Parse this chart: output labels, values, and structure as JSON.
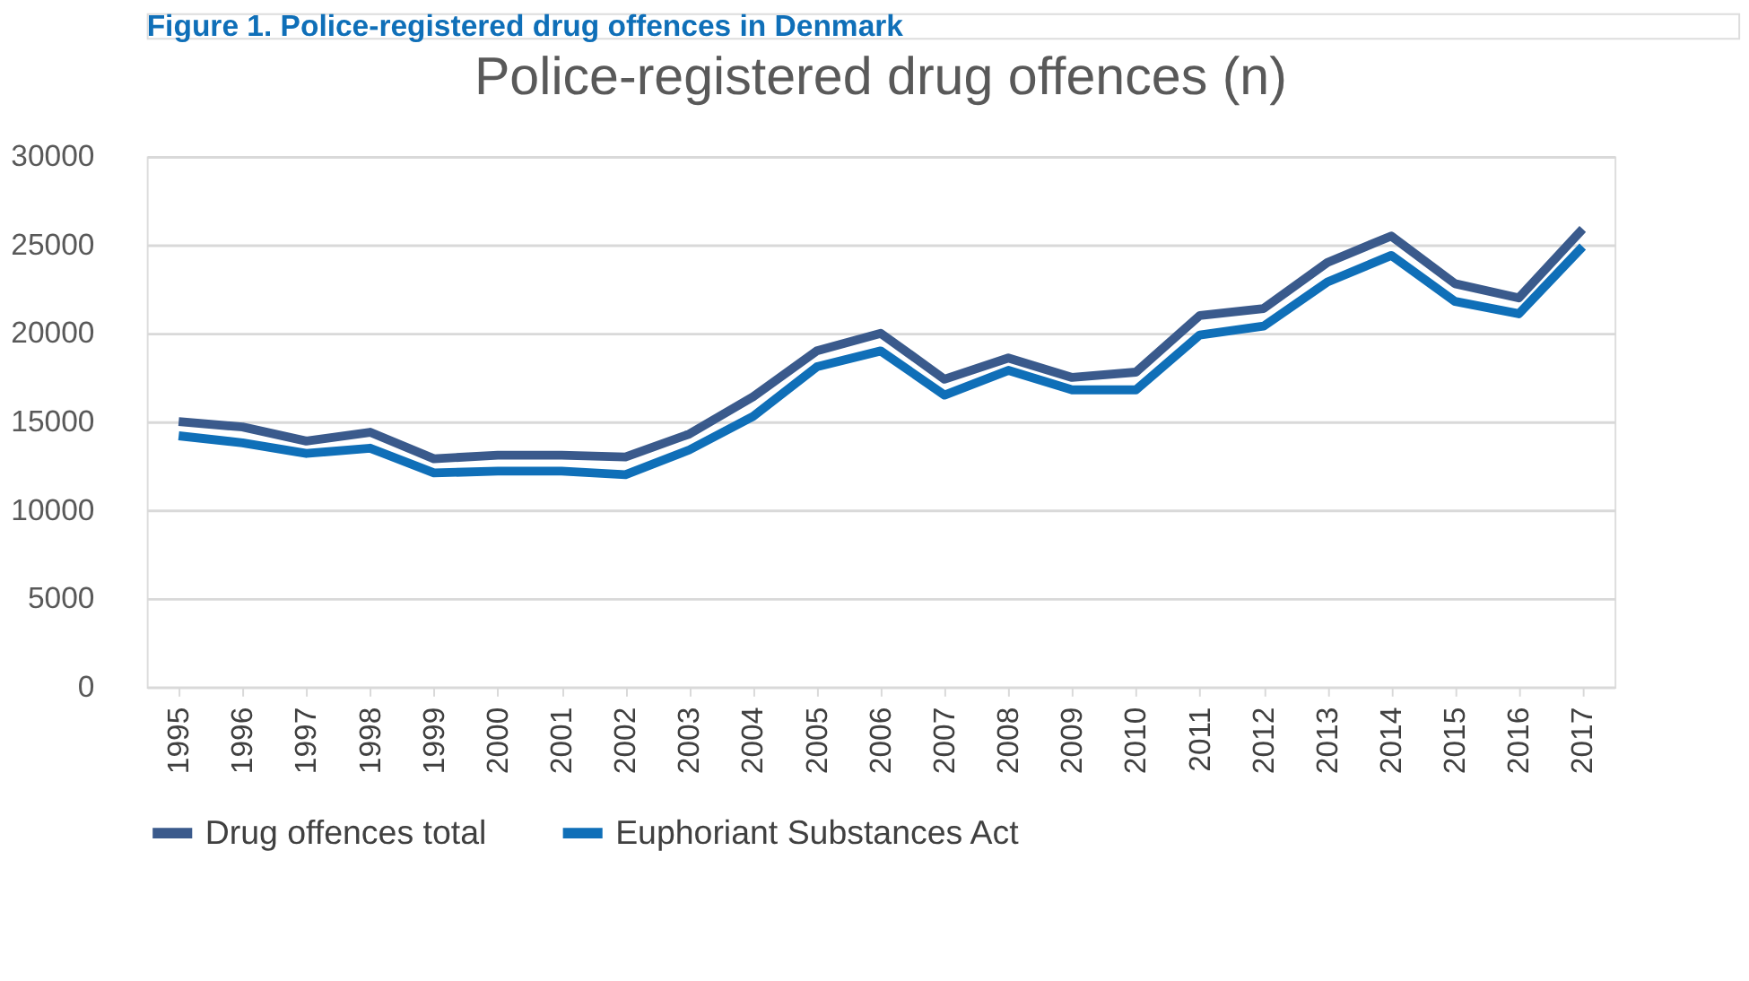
{
  "chart_data": {
    "type": "line",
    "title": "Police-registered drug offences (n)",
    "annotations": [
      "Figure 1. Police-registered drug offences in Denmark"
    ],
    "categories": [
      "1995",
      "1996",
      "1997",
      "1998",
      "1999",
      "2000",
      "2001",
      "2002",
      "2003",
      "2004",
      "2005",
      "2006",
      "2007",
      "2008",
      "2009",
      "2010",
      "2011",
      "2012",
      "2013",
      "2014",
      "2015",
      "2016",
      "2017"
    ],
    "series": [
      {
        "name": "Drug offences total",
        "color": "#3a5a8c",
        "values": [
          15000,
          14700,
          13900,
          14400,
          12900,
          13100,
          13100,
          13000,
          14300,
          16400,
          19000,
          20000,
          17400,
          18600,
          17500,
          17800,
          21000,
          21400,
          24000,
          25500,
          22800,
          22000,
          25900
        ]
      },
      {
        "name": "Euphoriant Substances Act",
        "color": "#0f6fb8",
        "values": [
          14200,
          13800,
          13200,
          13500,
          12100,
          12200,
          12200,
          12000,
          13400,
          15300,
          18100,
          19000,
          16500,
          17900,
          16800,
          16800,
          19900,
          20400,
          22900,
          24400,
          21800,
          21100,
          24900
        ]
      }
    ],
    "ylim": [
      0,
      30000
    ],
    "yticks": [
      0,
      5000,
      10000,
      15000,
      20000,
      25000,
      30000
    ],
    "grid": "y",
    "legend": "bottom",
    "marker": "none",
    "line_style": "solid"
  }
}
